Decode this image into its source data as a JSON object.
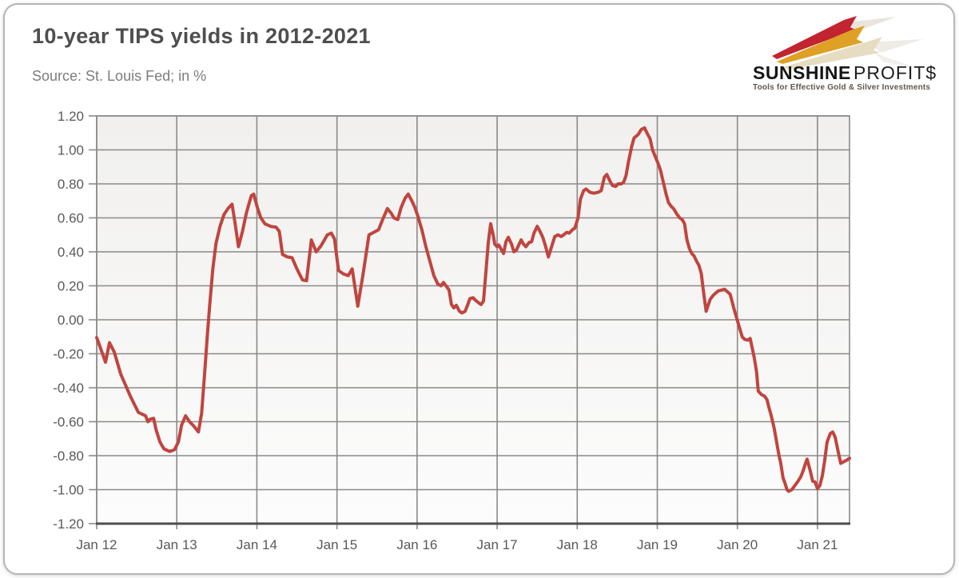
{
  "card": {
    "title": "10-year TIPS yields in 2012-2021",
    "source": "Source: St. Louis Fed; in %"
  },
  "logo": {
    "brand_primary": "SUNSHINE",
    "brand_secondary": "PROFIT$",
    "tagline": "Tools for Effective Gold & Silver Investments",
    "bolt_colors": [
      "#c22430",
      "#dea126",
      "#e6dcc2"
    ]
  },
  "chart_data": {
    "type": "line",
    "title": "10-year TIPS yields in 2012-2021",
    "source_note": "Source: St. Louis Fed; in %",
    "unit": "%",
    "grid": true,
    "legend": "none",
    "line_color": "#c0453f",
    "grid_color": "#8a8a8a",
    "axis_color": "#4d4d4d",
    "label_color": "#595959",
    "plot_bg_top": "#f1f0ee",
    "plot_bg_bottom": "#fcfcfc",
    "ylim": [
      -1.2,
      1.2
    ],
    "x_domain": [
      0,
      9.4
    ],
    "y_ticks": [
      {
        "v": 1.2,
        "label": "1.20"
      },
      {
        "v": 1.0,
        "label": "1.00"
      },
      {
        "v": 0.8,
        "label": "0.80"
      },
      {
        "v": 0.6,
        "label": "0.60"
      },
      {
        "v": 0.4,
        "label": "0.40"
      },
      {
        "v": 0.2,
        "label": "0.20"
      },
      {
        "v": 0.0,
        "label": "0.00"
      },
      {
        "v": -0.2,
        "label": "-0.20"
      },
      {
        "v": -0.4,
        "label": "-0.40"
      },
      {
        "v": -0.6,
        "label": "-0.60"
      },
      {
        "v": -0.8,
        "label": "-0.80"
      },
      {
        "v": -1.0,
        "label": "-1.00"
      },
      {
        "v": -1.2,
        "label": "-1.20"
      }
    ],
    "x_ticks": [
      {
        "t": 0,
        "label": "Jan 12"
      },
      {
        "t": 1,
        "label": "Jan 13"
      },
      {
        "t": 2,
        "label": "Jan 14"
      },
      {
        "t": 3,
        "label": "Jan 15"
      },
      {
        "t": 4,
        "label": "Jan 16"
      },
      {
        "t": 5,
        "label": "Jan 17"
      },
      {
        "t": 6,
        "label": "Jan 18"
      },
      {
        "t": 7,
        "label": "Jan 19"
      },
      {
        "t": 8,
        "label": "Jan 20"
      },
      {
        "t": 9,
        "label": "Jan 21"
      }
    ],
    "series": [
      {
        "name": "10-year TIPS yield (%)",
        "points": [
          [
            0.0,
            -0.105
          ],
          [
            0.05,
            -0.17
          ],
          [
            0.11,
            -0.25
          ],
          [
            0.16,
            -0.135
          ],
          [
            0.22,
            -0.19
          ],
          [
            0.3,
            -0.32
          ],
          [
            0.42,
            -0.45
          ],
          [
            0.52,
            -0.545
          ],
          [
            0.61,
            -0.565
          ],
          [
            0.64,
            -0.6
          ],
          [
            0.67,
            -0.585
          ],
          [
            0.71,
            -0.58
          ],
          [
            0.74,
            -0.645
          ],
          [
            0.79,
            -0.72
          ],
          [
            0.84,
            -0.76
          ],
          [
            0.91,
            -0.775
          ],
          [
            0.97,
            -0.765
          ],
          [
            1.02,
            -0.72
          ],
          [
            1.06,
            -0.62
          ],
          [
            1.11,
            -0.565
          ],
          [
            1.16,
            -0.6
          ],
          [
            1.21,
            -0.625
          ],
          [
            1.27,
            -0.66
          ],
          [
            1.31,
            -0.55
          ],
          [
            1.35,
            -0.3
          ],
          [
            1.38,
            -0.1
          ],
          [
            1.41,
            0.08
          ],
          [
            1.45,
            0.3
          ],
          [
            1.49,
            0.45
          ],
          [
            1.54,
            0.55
          ],
          [
            1.59,
            0.62
          ],
          [
            1.64,
            0.655
          ],
          [
            1.69,
            0.68
          ],
          [
            1.73,
            0.56
          ],
          [
            1.77,
            0.43
          ],
          [
            1.82,
            0.52
          ],
          [
            1.87,
            0.63
          ],
          [
            1.93,
            0.73
          ],
          [
            1.96,
            0.74
          ],
          [
            2.01,
            0.655
          ],
          [
            2.05,
            0.6
          ],
          [
            2.1,
            0.565
          ],
          [
            2.17,
            0.55
          ],
          [
            2.24,
            0.545
          ],
          [
            2.28,
            0.52
          ],
          [
            2.32,
            0.385
          ],
          [
            2.38,
            0.37
          ],
          [
            2.44,
            0.365
          ],
          [
            2.5,
            0.3
          ],
          [
            2.57,
            0.235
          ],
          [
            2.62,
            0.23
          ],
          [
            2.68,
            0.47
          ],
          [
            2.74,
            0.4
          ],
          [
            2.8,
            0.435
          ],
          [
            2.88,
            0.5
          ],
          [
            2.93,
            0.51
          ],
          [
            2.97,
            0.475
          ],
          [
            3.02,
            0.29
          ],
          [
            3.08,
            0.27
          ],
          [
            3.14,
            0.26
          ],
          [
            3.19,
            0.3
          ],
          [
            3.26,
            0.08
          ],
          [
            3.33,
            0.28
          ],
          [
            3.4,
            0.5
          ],
          [
            3.46,
            0.515
          ],
          [
            3.52,
            0.53
          ],
          [
            3.57,
            0.59
          ],
          [
            3.63,
            0.655
          ],
          [
            3.68,
            0.625
          ],
          [
            3.71,
            0.6
          ],
          [
            3.76,
            0.59
          ],
          [
            3.8,
            0.66
          ],
          [
            3.85,
            0.715
          ],
          [
            3.89,
            0.74
          ],
          [
            3.93,
            0.705
          ],
          [
            3.97,
            0.665
          ],
          [
            4.01,
            0.61
          ],
          [
            4.06,
            0.53
          ],
          [
            4.11,
            0.43
          ],
          [
            4.16,
            0.345
          ],
          [
            4.21,
            0.26
          ],
          [
            4.26,
            0.21
          ],
          [
            4.3,
            0.2
          ],
          [
            4.33,
            0.22
          ],
          [
            4.37,
            0.195
          ],
          [
            4.4,
            0.175
          ],
          [
            4.43,
            0.09
          ],
          [
            4.46,
            0.07
          ],
          [
            4.49,
            0.085
          ],
          [
            4.53,
            0.05
          ],
          [
            4.56,
            0.04
          ],
          [
            4.6,
            0.05
          ],
          [
            4.63,
            0.085
          ],
          [
            4.66,
            0.125
          ],
          [
            4.7,
            0.13
          ],
          [
            4.73,
            0.115
          ],
          [
            4.77,
            0.1
          ],
          [
            4.8,
            0.09
          ],
          [
            4.83,
            0.11
          ],
          [
            4.86,
            0.28
          ],
          [
            4.89,
            0.455
          ],
          [
            4.92,
            0.565
          ],
          [
            4.95,
            0.5
          ],
          [
            4.97,
            0.445
          ],
          [
            5.0,
            0.43
          ],
          [
            5.02,
            0.44
          ],
          [
            5.05,
            0.415
          ],
          [
            5.08,
            0.39
          ],
          [
            5.11,
            0.46
          ],
          [
            5.14,
            0.485
          ],
          [
            5.18,
            0.445
          ],
          [
            5.21,
            0.4
          ],
          [
            5.24,
            0.41
          ],
          [
            5.27,
            0.44
          ],
          [
            5.3,
            0.47
          ],
          [
            5.33,
            0.445
          ],
          [
            5.36,
            0.43
          ],
          [
            5.4,
            0.455
          ],
          [
            5.43,
            0.46
          ],
          [
            5.46,
            0.51
          ],
          [
            5.5,
            0.55
          ],
          [
            5.53,
            0.525
          ],
          [
            5.57,
            0.485
          ],
          [
            5.6,
            0.44
          ],
          [
            5.64,
            0.37
          ],
          [
            5.68,
            0.43
          ],
          [
            5.72,
            0.49
          ],
          [
            5.76,
            0.5
          ],
          [
            5.8,
            0.49
          ],
          [
            5.83,
            0.5
          ],
          [
            5.87,
            0.515
          ],
          [
            5.9,
            0.51
          ],
          [
            5.94,
            0.53
          ],
          [
            5.97,
            0.54
          ],
          [
            6.01,
            0.6
          ],
          [
            6.04,
            0.71
          ],
          [
            6.08,
            0.76
          ],
          [
            6.11,
            0.77
          ],
          [
            6.16,
            0.75
          ],
          [
            6.21,
            0.745
          ],
          [
            6.26,
            0.75
          ],
          [
            6.3,
            0.76
          ],
          [
            6.34,
            0.84
          ],
          [
            6.37,
            0.855
          ],
          [
            6.41,
            0.815
          ],
          [
            6.44,
            0.79
          ],
          [
            6.48,
            0.785
          ],
          [
            6.51,
            0.8
          ],
          [
            6.55,
            0.8
          ],
          [
            6.58,
            0.81
          ],
          [
            6.61,
            0.85
          ],
          [
            6.64,
            0.93
          ],
          [
            6.68,
            1.02
          ],
          [
            6.71,
            1.07
          ],
          [
            6.76,
            1.09
          ],
          [
            6.8,
            1.12
          ],
          [
            6.84,
            1.13
          ],
          [
            6.87,
            1.1
          ],
          [
            6.91,
            1.065
          ],
          [
            6.94,
            1.0
          ],
          [
            6.97,
            0.965
          ],
          [
            7.01,
            0.92
          ],
          [
            7.04,
            0.88
          ],
          [
            7.07,
            0.82
          ],
          [
            7.11,
            0.74
          ],
          [
            7.14,
            0.69
          ],
          [
            7.17,
            0.67
          ],
          [
            7.21,
            0.65
          ],
          [
            7.24,
            0.625
          ],
          [
            7.28,
            0.6
          ],
          [
            7.31,
            0.59
          ],
          [
            7.34,
            0.565
          ],
          [
            7.37,
            0.47
          ],
          [
            7.4,
            0.42
          ],
          [
            7.43,
            0.39
          ],
          [
            7.46,
            0.375
          ],
          [
            7.49,
            0.345
          ],
          [
            7.52,
            0.32
          ],
          [
            7.55,
            0.27
          ],
          [
            7.57,
            0.19
          ],
          [
            7.61,
            0.05
          ],
          [
            7.66,
            0.12
          ],
          [
            7.7,
            0.145
          ],
          [
            7.76,
            0.17
          ],
          [
            7.84,
            0.18
          ],
          [
            7.91,
            0.15
          ],
          [
            7.96,
            0.06
          ],
          [
            8.01,
            -0.02
          ],
          [
            8.06,
            -0.1
          ],
          [
            8.09,
            -0.115
          ],
          [
            8.13,
            -0.12
          ],
          [
            8.16,
            -0.11
          ],
          [
            8.21,
            -0.22
          ],
          [
            8.24,
            -0.31
          ],
          [
            8.26,
            -0.42
          ],
          [
            8.3,
            -0.44
          ],
          [
            8.34,
            -0.45
          ],
          [
            8.37,
            -0.47
          ],
          [
            8.39,
            -0.51
          ],
          [
            8.42,
            -0.56
          ],
          [
            8.46,
            -0.64
          ],
          [
            8.49,
            -0.72
          ],
          [
            8.52,
            -0.8
          ],
          [
            8.54,
            -0.84
          ],
          [
            8.57,
            -0.93
          ],
          [
            8.6,
            -0.97
          ],
          [
            8.62,
            -1.0
          ],
          [
            8.64,
            -1.01
          ],
          [
            8.68,
            -1.0
          ],
          [
            8.71,
            -0.98
          ],
          [
            8.75,
            -0.955
          ],
          [
            8.79,
            -0.925
          ],
          [
            8.82,
            -0.89
          ],
          [
            8.85,
            -0.845
          ],
          [
            8.87,
            -0.82
          ],
          [
            8.91,
            -0.89
          ],
          [
            8.94,
            -0.95
          ],
          [
            8.97,
            -0.955
          ],
          [
            9.0,
            -0.995
          ],
          [
            9.03,
            -0.975
          ],
          [
            9.06,
            -0.92
          ],
          [
            9.09,
            -0.83
          ],
          [
            9.12,
            -0.72
          ],
          [
            9.16,
            -0.67
          ],
          [
            9.19,
            -0.66
          ],
          [
            9.22,
            -0.69
          ],
          [
            9.26,
            -0.78
          ],
          [
            9.29,
            -0.845
          ],
          [
            9.33,
            -0.835
          ],
          [
            9.37,
            -0.825
          ],
          [
            9.4,
            -0.815
          ]
        ]
      }
    ]
  }
}
